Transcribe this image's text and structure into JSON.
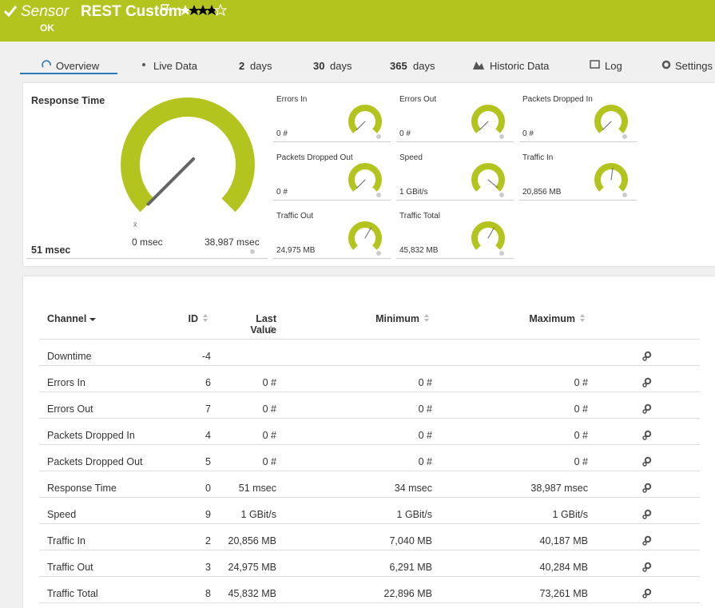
{
  "header": {
    "prefix": "Sensor",
    "title": "REST Custom",
    "status": "OK"
  },
  "tabs": [
    {
      "label": "Overview"
    },
    {
      "label": "Live Data"
    },
    {
      "number": "2",
      "label": "days"
    },
    {
      "number": "30",
      "label": "days"
    },
    {
      "number": "365",
      "label": "days"
    },
    {
      "label": "Historic Data"
    },
    {
      "label": "Log"
    },
    {
      "label": "Settings"
    }
  ],
  "main_gauge": {
    "title": "Response Time",
    "value": "51 msec",
    "min": "0 msec",
    "max": "38,987 msec",
    "avg_marker": "x̄"
  },
  "gauges": [
    {
      "title": "Errors In",
      "value": "0 #"
    },
    {
      "title": "Errors Out",
      "value": "0 #"
    },
    {
      "title": "Packets Dropped In",
      "value": "0 #"
    },
    {
      "title": "Packets Dropped Out",
      "value": "0 #"
    },
    {
      "title": "Speed",
      "value": "1 GBit/s"
    },
    {
      "title": "Traffic In",
      "value": "20,856 MB"
    },
    {
      "title": "Traffic Out",
      "value": "24,975 MB"
    },
    {
      "title": "Traffic Total",
      "value": "45,832 MB"
    }
  ],
  "table": {
    "headers": [
      "Channel",
      "ID",
      "Last Value",
      "Minimum",
      "Maximum"
    ],
    "rows": [
      {
        "channel": "Downtime",
        "id": -4
      },
      {
        "channel": "Errors In",
        "id": 6,
        "last": "0 #",
        "min": "0 #",
        "max": "0 #"
      },
      {
        "channel": "Errors Out",
        "id": 7,
        "last": "0 #",
        "min": "0 #",
        "max": "0 #"
      },
      {
        "channel": "Packets Dropped In",
        "id": 4,
        "last": "0 #",
        "min": "0 #",
        "max": "0 #"
      },
      {
        "channel": "Packets Dropped Out",
        "id": 5,
        "last": "0 #",
        "min": "0 #",
        "max": "0 #"
      },
      {
        "channel": "Response Time",
        "id": 0,
        "last": "51 msec",
        "min": "34 msec",
        "max": "38,987 msec"
      },
      {
        "channel": "Speed",
        "id": 9,
        "last": "1 GBit/s",
        "min": "1 GBit/s",
        "max": "1 GBit/s"
      },
      {
        "channel": "Traffic In",
        "id": 2,
        "last": "20,856 MB",
        "min": "7,040 MB",
        "max": "40,187 MB"
      },
      {
        "channel": "Traffic Out",
        "id": 3,
        "last": "24,975 MB",
        "min": "6,291 MB",
        "max": "40,284 MB"
      },
      {
        "channel": "Traffic Total",
        "id": 8,
        "last": "45,832 MB",
        "min": "22,896 MB",
        "max": "73,261 MB"
      }
    ]
  }
}
